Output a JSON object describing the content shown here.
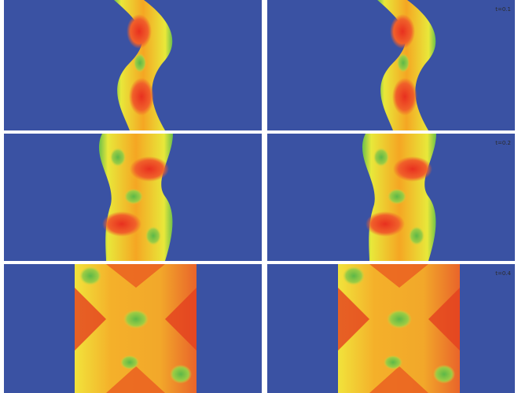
{
  "panels": {
    "labels": [
      "t=0.1",
      "t=0.2",
      "t=0.4"
    ]
  }
}
